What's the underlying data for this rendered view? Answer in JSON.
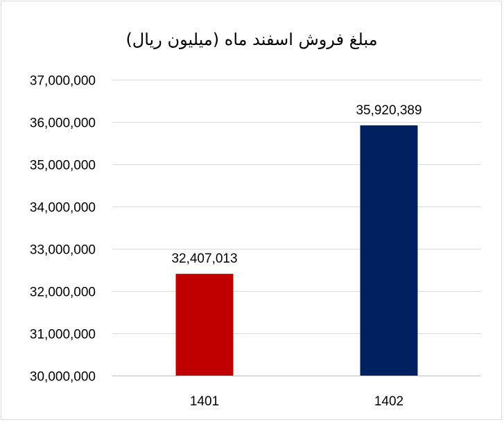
{
  "chart_data": {
    "type": "bar",
    "title": "مبلغ فروش اسفند ماه (میلیون ریال)",
    "xlabel": "",
    "ylabel": "",
    "categories": [
      "1401",
      "1402"
    ],
    "values": [
      32407013,
      35920389
    ],
    "data_labels": [
      "32,407,013",
      "35,920,389"
    ],
    "bar_colors": [
      "#c00000",
      "#002060"
    ],
    "ylim": [
      30000000,
      37000000
    ],
    "y_ticks": [
      30000000,
      31000000,
      32000000,
      33000000,
      34000000,
      35000000,
      36000000,
      37000000
    ],
    "y_tick_labels": [
      "30,000,000",
      "31,000,000",
      "32,000,000",
      "33,000,000",
      "34,000,000",
      "35,000,000",
      "36,000,000",
      "37,000,000"
    ],
    "grid": true,
    "legend": "none",
    "gridline_color": "#d9d9d9",
    "axis_line_color": "#bfbfbf"
  }
}
